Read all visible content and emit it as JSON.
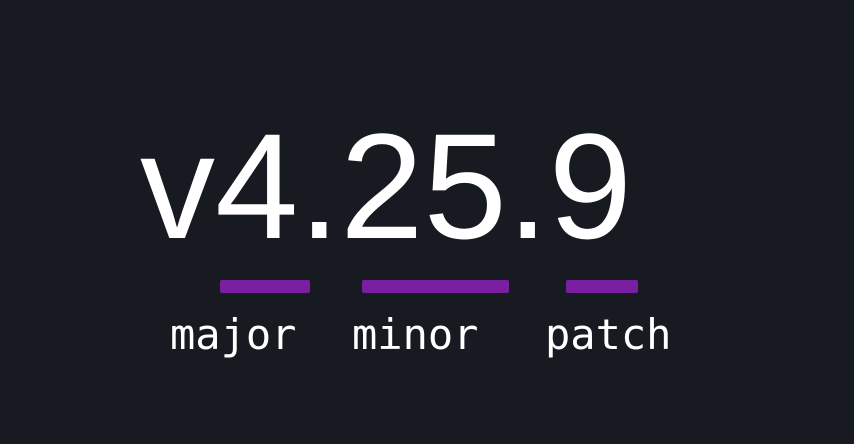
{
  "version": {
    "full": "v4.25.9",
    "prefix": "v",
    "major": "4",
    "minor": "25",
    "patch": "9"
  },
  "segments": [
    {
      "id": "major",
      "label": "major"
    },
    {
      "id": "minor",
      "label": "minor"
    },
    {
      "id": "patch",
      "label": "patch"
    }
  ],
  "colors": {
    "background": "#181a22",
    "accent": "#7b1fa2",
    "text": "#ffffff"
  }
}
